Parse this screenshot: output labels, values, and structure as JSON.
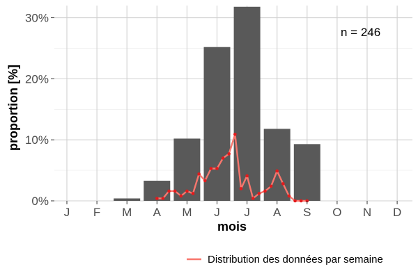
{
  "chart_data": {
    "type": "bar",
    "xlabel": "mois",
    "ylabel": "proportion [%]",
    "annotation": "n = 246",
    "categories": [
      "J",
      "F",
      "M",
      "A",
      "M",
      "J",
      "J",
      "A",
      "S",
      "O",
      "N",
      "D"
    ],
    "ylim": [
      0,
      32
    ],
    "yticks": [
      0,
      10,
      20,
      30
    ],
    "ytick_labels": [
      "0%",
      "10%",
      "20%",
      "30%"
    ],
    "grid": true,
    "legend_position": "bottom-right",
    "series": [
      {
        "type": "bar",
        "values": [
          0,
          0,
          0.4,
          3.3,
          10.2,
          25.2,
          31.8,
          11.8,
          9.3,
          0,
          0,
          0
        ],
        "color": "#595959"
      },
      {
        "type": "line",
        "name": "Distribution des données par semaine",
        "color": "#f8766d",
        "point_color": "#e41a1c",
        "x": [
          3.0,
          3.2,
          3.4,
          3.6,
          3.8,
          4.0,
          4.2,
          4.4,
          4.6,
          4.8,
          5.0,
          5.2,
          5.4,
          5.6,
          5.8,
          6.0,
          6.2,
          6.4,
          6.6,
          6.8,
          7.0,
          7.2,
          7.4,
          7.6,
          7.8,
          8.0
        ],
        "y": [
          0.4,
          0.4,
          1.6,
          1.6,
          0.8,
          1.6,
          1.2,
          4.4,
          3.3,
          5.3,
          5.3,
          7.0,
          7.7,
          10.9,
          2.0,
          4.1,
          0.4,
          1.2,
          1.6,
          2.4,
          4.9,
          2.8,
          0.8,
          0,
          0,
          0
        ]
      }
    ]
  }
}
